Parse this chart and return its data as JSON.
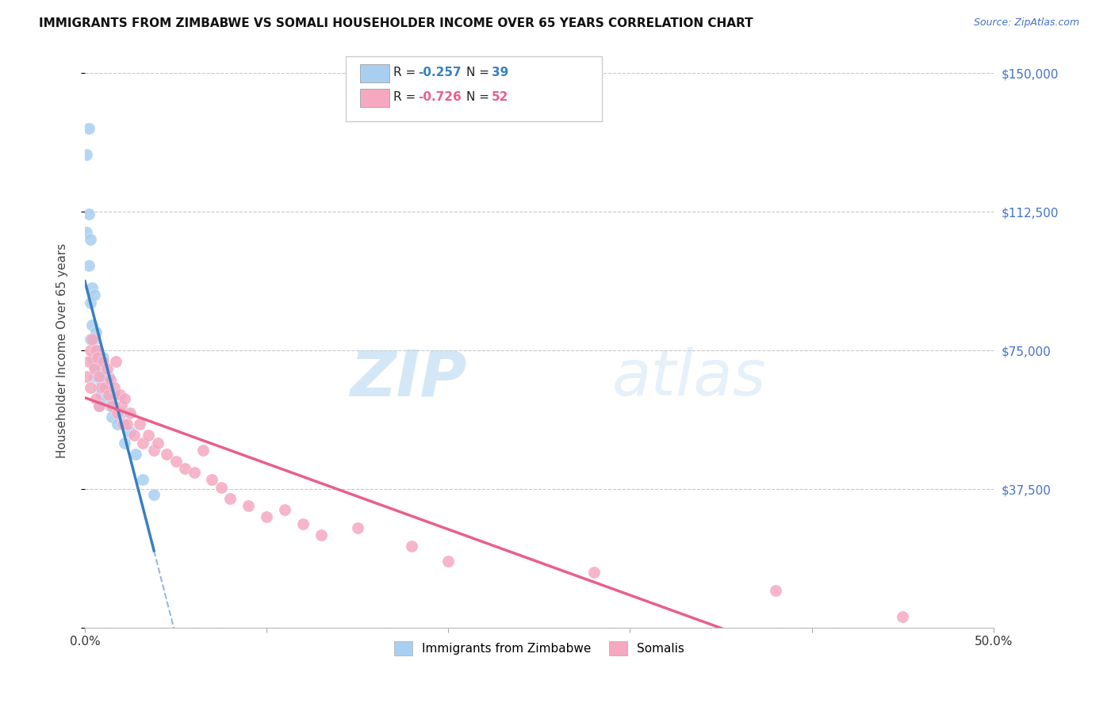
{
  "title": "IMMIGRANTS FROM ZIMBABWE VS SOMALI HOUSEHOLDER INCOME OVER 65 YEARS CORRELATION CHART",
  "source": "Source: ZipAtlas.com",
  "ylabel": "Householder Income Over 65 years",
  "xlim": [
    0.0,
    0.5
  ],
  "ylim": [
    0,
    150000
  ],
  "yticks": [
    0,
    37500,
    75000,
    112500,
    150000
  ],
  "ytick_labels": [
    "",
    "$37,500",
    "$75,000",
    "$112,500",
    "$150,000"
  ],
  "xticks": [
    0.0,
    0.1,
    0.2,
    0.3,
    0.4,
    0.5
  ],
  "xtick_labels": [
    "0.0%",
    "",
    "",
    "",
    "",
    "50.0%"
  ],
  "background_color": "#ffffff",
  "grid_color": "#c8c8c8",
  "watermark_ZIP": "ZIP",
  "watermark_atlas": "atlas",
  "series": [
    {
      "name": "Immigrants from Zimbabwe",
      "R": -0.257,
      "N": 39,
      "color": "#a8cff0",
      "line_color": "#3a7fc1",
      "x": [
        0.001,
        0.001,
        0.002,
        0.002,
        0.002,
        0.003,
        0.003,
        0.003,
        0.004,
        0.004,
        0.004,
        0.005,
        0.005,
        0.005,
        0.005,
        0.006,
        0.006,
        0.007,
        0.007,
        0.008,
        0.008,
        0.008,
        0.009,
        0.009,
        0.01,
        0.01,
        0.011,
        0.012,
        0.013,
        0.014,
        0.015,
        0.016,
        0.018,
        0.02,
        0.022,
        0.025,
        0.028,
        0.032,
        0.038
      ],
      "y": [
        128000,
        107000,
        135000,
        112000,
        98000,
        105000,
        88000,
        78000,
        92000,
        82000,
        73000,
        90000,
        78000,
        71000,
        68000,
        80000,
        73000,
        75000,
        68000,
        72000,
        65000,
        60000,
        70000,
        63000,
        68000,
        73000,
        65000,
        62000,
        68000,
        60000,
        57000,
        63000,
        55000,
        58000,
        50000,
        53000,
        47000,
        40000,
        36000
      ]
    },
    {
      "name": "Somalis",
      "R": -0.726,
      "N": 52,
      "color": "#f5a8c0",
      "line_color": "#e8608a",
      "x": [
        0.001,
        0.002,
        0.003,
        0.003,
        0.004,
        0.005,
        0.006,
        0.006,
        0.007,
        0.008,
        0.008,
        0.009,
        0.01,
        0.011,
        0.012,
        0.013,
        0.014,
        0.015,
        0.016,
        0.017,
        0.018,
        0.019,
        0.02,
        0.021,
        0.022,
        0.023,
        0.025,
        0.027,
        0.03,
        0.032,
        0.035,
        0.038,
        0.04,
        0.045,
        0.05,
        0.055,
        0.06,
        0.065,
        0.07,
        0.075,
        0.08,
        0.09,
        0.1,
        0.11,
        0.12,
        0.13,
        0.15,
        0.18,
        0.2,
        0.28,
        0.38,
        0.45
      ],
      "y": [
        68000,
        72000,
        75000,
        65000,
        78000,
        70000,
        75000,
        62000,
        73000,
        68000,
        60000,
        65000,
        72000,
        65000,
        70000,
        63000,
        67000,
        60000,
        65000,
        72000,
        58000,
        63000,
        60000,
        55000,
        62000,
        55000,
        58000,
        52000,
        55000,
        50000,
        52000,
        48000,
        50000,
        47000,
        45000,
        43000,
        42000,
        48000,
        40000,
        38000,
        35000,
        33000,
        30000,
        32000,
        28000,
        25000,
        27000,
        22000,
        18000,
        15000,
        10000,
        3000
      ]
    }
  ]
}
